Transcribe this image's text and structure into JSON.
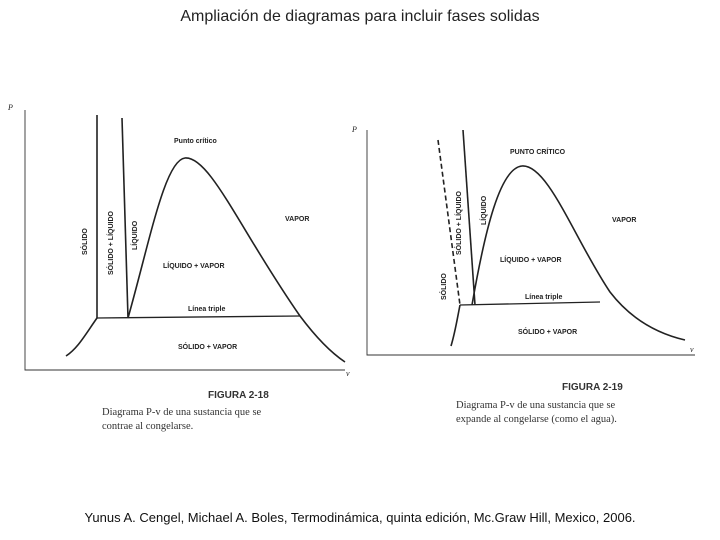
{
  "title": "Ampliación de diagramas para incluir fases solidas",
  "figures": [
    {
      "y_axis": "P",
      "x_axis": "v",
      "critical_point": "Punto crítico",
      "solid": "SÓLIDO",
      "solid_liquid": "SÓLIDO + LÍQUIDO",
      "liquid": "LÍQUIDO",
      "vapor": "VAPOR",
      "liquid_vapor": "LÍQUIDO + VAPOR",
      "triple_line": "Línea triple",
      "solid_vapor": "SÓLIDO + VAPOR",
      "figure_label": "FIGURA 2-18",
      "caption": [
        "Diagrama P-v de una sustancia que se",
        "contrae al congelarse."
      ]
    },
    {
      "y_axis": "P",
      "x_axis": "v",
      "critical_point": "PUNTO CRÍTICO",
      "solid": "SÓLIDO",
      "solid_liquid": "SÓLIDO + LÍQUIDO",
      "liquid": "LÍQUIDO",
      "vapor": "VAPOR",
      "liquid_vapor": "LÍQUIDO + VAPOR",
      "triple_line": "Línea triple",
      "solid_vapor": "SÓLIDO + VAPOR",
      "figure_label": "FIGURA 2-19",
      "caption": [
        "Diagrama P-v de una sustancia que se",
        "expande al congelarse (como el agua)."
      ]
    }
  ],
  "citation": "Yunus A. Cengel,  Michael A. Boles, Termodinámica, quinta edición, Mc.Graw Hill, Mexico, 2006."
}
